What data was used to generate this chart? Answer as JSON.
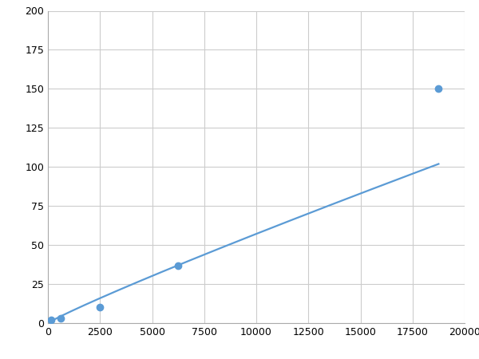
{
  "x": [
    156,
    625,
    2500,
    6250,
    18750
  ],
  "y": [
    2,
    3,
    10,
    37,
    150
  ],
  "line_color": "#5B9BD5",
  "marker_color": "#5B9BD5",
  "marker_size": 6,
  "line_width": 1.6,
  "xlim": [
    0,
    20000
  ],
  "ylim": [
    0,
    200
  ],
  "xticks": [
    0,
    2500,
    5000,
    7500,
    10000,
    12500,
    15000,
    17500,
    20000
  ],
  "yticks": [
    0,
    25,
    50,
    75,
    100,
    125,
    150,
    175,
    200
  ],
  "grid_color": "#CCCCCC",
  "grid_linewidth": 0.8,
  "background_color": "#FFFFFF",
  "figure_bg": "#FFFFFF",
  "tick_fontsize": 9
}
